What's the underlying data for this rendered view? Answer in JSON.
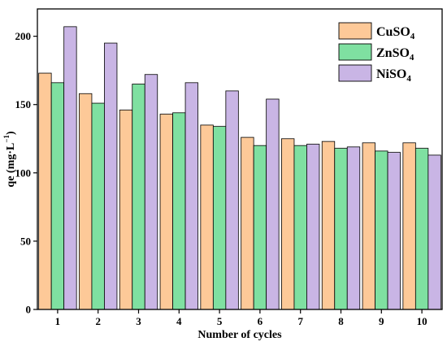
{
  "chart_data": {
    "type": "bar",
    "xlabel": "Number of cycles",
    "ylabel_main": "qe (mg·L",
    "ylabel_sup": "−1",
    "ylabel_close": ")",
    "ylim": [
      0,
      220
    ],
    "yticks": [
      0,
      50,
      100,
      150,
      200
    ],
    "categories": [
      "1",
      "2",
      "3",
      "4",
      "5",
      "6",
      "7",
      "8",
      "9",
      "10"
    ],
    "legend_position": "top-right",
    "grid": false,
    "series": [
      {
        "name": "CuSO",
        "subscript": "4",
        "color": "#FDC998",
        "values": [
          173,
          158,
          146,
          143,
          135,
          126,
          125,
          123,
          122,
          122
        ]
      },
      {
        "name": "ZnSO",
        "subscript": "4",
        "color": "#7FE0A1",
        "values": [
          166,
          151,
          165,
          144,
          134,
          120,
          120,
          118,
          116,
          118
        ]
      },
      {
        "name": "NiSO",
        "subscript": "4",
        "color": "#C9B5E5",
        "values": [
          207,
          195,
          172,
          166,
          160,
          154,
          121,
          119,
          115,
          113
        ]
      }
    ]
  }
}
